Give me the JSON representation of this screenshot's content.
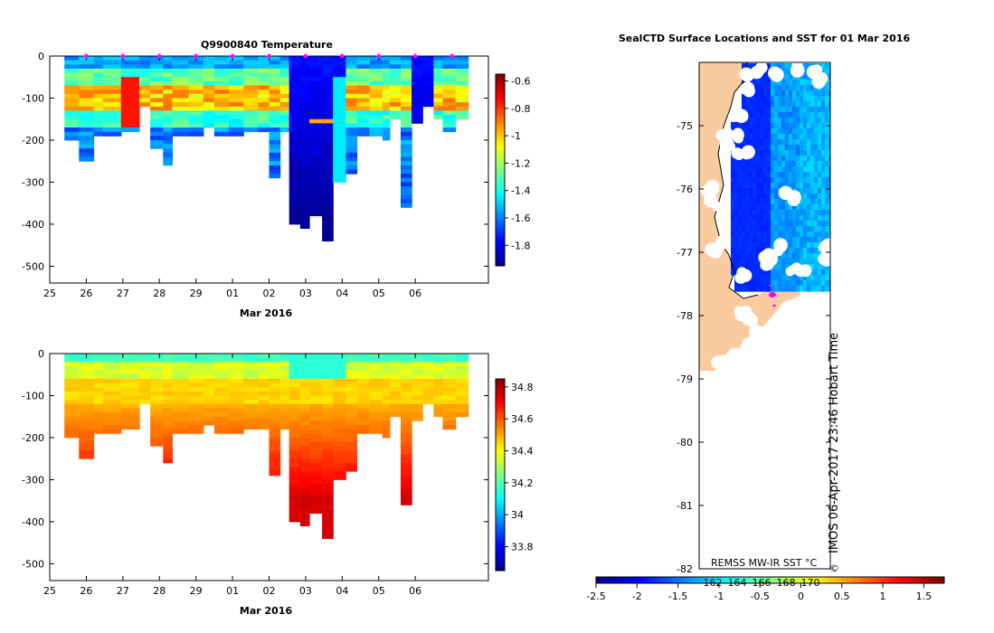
{
  "chart_data": [
    {
      "type": "heatmap",
      "title": "Q9900840  Temperature",
      "xlabel": "Mar 2016",
      "x_ticks": [
        "25",
        "26",
        "27",
        "28",
        "29",
        "01",
        "02",
        "03",
        "04",
        "05",
        "06"
      ],
      "x_range": [
        25,
        37
      ],
      "ylim": [
        -540,
        0
      ],
      "y_ticks": [
        0,
        -100,
        -200,
        -300,
        -400,
        -500
      ],
      "colorbar": {
        "range": [
          -1.95,
          -0.55
        ],
        "ticks": [
          -0.6,
          -0.8,
          -1,
          -1.2,
          -1.4,
          -1.6,
          -1.8
        ]
      },
      "profile_days": [
        25.4,
        25.8,
        26.2,
        26.45,
        26.95,
        27.45,
        27.75,
        28.1,
        28.35,
        28.8,
        29.2,
        29.5,
        29.9,
        30.3,
        30.7,
        31.0,
        31.3,
        31.55,
        31.85,
        32.1,
        32.45,
        32.75,
        33.1,
        33.4,
        33.75,
        34.1,
        34.3,
        34.6,
        34.9,
        35.2,
        35.5,
        35.75,
        36.1
      ],
      "profile_max_depth": [
        200,
        245,
        190,
        190,
        180,
        115,
        220,
        255,
        185,
        185,
        165,
        185,
        185,
        180,
        180,
        290,
        180,
        395,
        410,
        380,
        440,
        300,
        275,
        185,
        185,
        200,
        150,
        355,
        160,
        115,
        145,
        180,
        150
      ],
      "surface_markers": [
        26,
        27,
        28,
        29,
        30,
        31,
        32,
        33,
        34,
        35,
        36
      ]
    },
    {
      "type": "heatmap",
      "title": "",
      "xlabel": "Mar 2016",
      "x_ticks": [
        "25",
        "26",
        "27",
        "28",
        "29",
        "01",
        "02",
        "03",
        "04",
        "05",
        "06"
      ],
      "x_range": [
        25,
        37
      ],
      "ylim": [
        -540,
        0
      ],
      "y_ticks": [
        0,
        -100,
        -200,
        -300,
        -400,
        -500
      ],
      "colorbar": {
        "range": [
          33.65,
          34.85
        ],
        "ticks": [
          34.8,
          34.6,
          34.4,
          34.2,
          34,
          33.8
        ]
      }
    },
    {
      "type": "heatmap",
      "title": "SealCTD Surface Locations and SST for 01 Mar 2016",
      "y_ticks": [
        -75,
        -76,
        -77,
        -78,
        -79,
        -80,
        -81,
        -82
      ],
      "ylim": [
        -82,
        -74
      ],
      "x_ticks": [
        "162",
        "164",
        "166",
        "168",
        "170"
      ],
      "colorbar": {
        "range": [
          -2.5,
          1.75
        ],
        "ticks": [
          "-2.5",
          "-2",
          "-1.5",
          "-1",
          "-0.5",
          "0",
          "0.5",
          "1",
          "1.5"
        ]
      },
      "source_label": "REMSS MW-IR SST °C",
      "stamp": "IMOS 06-Apr-2017 23:46 Hobart Time",
      "copyright": "©"
    }
  ],
  "colors": {
    "land": "#fbcba0",
    "marker": "#ff00ff",
    "jet": [
      "#00008f",
      "#0000ff",
      "#0080ff",
      "#00ffff",
      "#80ff80",
      "#ffff00",
      "#ff8000",
      "#ff0000",
      "#800000"
    ]
  }
}
